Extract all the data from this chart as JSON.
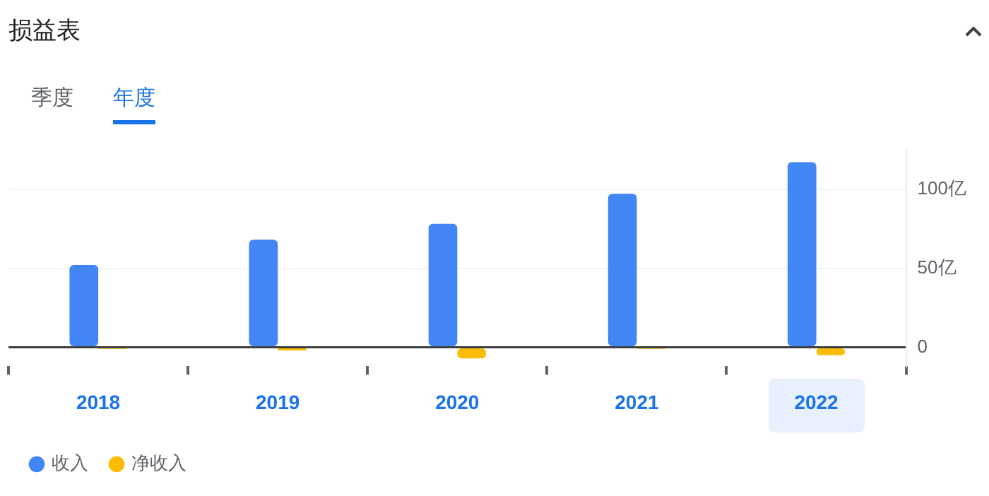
{
  "chart_data": {
    "type": "bar",
    "title": "损益表",
    "annotations": [
      "季度",
      "年度"
    ],
    "categories": [
      "2018",
      "2019",
      "2020",
      "2021",
      "2022"
    ],
    "series": [
      {
        "name": "收入",
        "color": "#4285f4",
        "values": [
          52,
          68,
          78,
          97,
          117
        ]
      },
      {
        "name": "净收入",
        "color": "#fbbc04",
        "values": [
          -1,
          -2,
          -7,
          -1,
          -5
        ]
      }
    ],
    "ylim": [
      -12,
      125
    ],
    "yticks": [
      {
        "value": 0,
        "label": "0"
      },
      {
        "value": 50,
        "label": "50亿"
      },
      {
        "value": 100,
        "label": "100亿"
      }
    ],
    "grid": "y",
    "legend": "bottom left"
  }
}
